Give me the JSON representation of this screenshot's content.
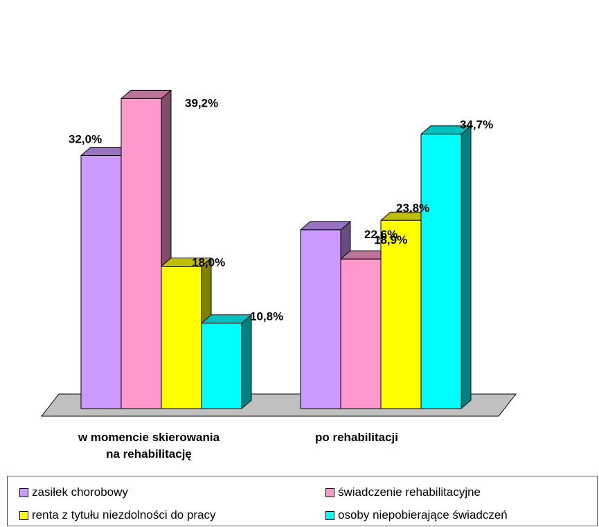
{
  "chart_data": {
    "type": "bar",
    "categories": [
      "w momencie skierowania na rehabilitację",
      "po rehabilitacji"
    ],
    "category_lines": [
      [
        "w momencie skierowania",
        "na rehabilitację"
      ],
      [
        "po rehabilitacji"
      ]
    ],
    "series": [
      {
        "name": "zasiłek chorobowy",
        "values": [
          32.0,
          22.6
        ],
        "labels": [
          "32,0%",
          "22,6%"
        ],
        "color": "#cc99ff"
      },
      {
        "name": "świadczenie rehabilitacyjne",
        "values": [
          39.2,
          18.9
        ],
        "labels": [
          "39,2%",
          "18,9%"
        ],
        "color": "#ff99cc"
      },
      {
        "name": "renta z tytułu niezdolności do pracy",
        "values": [
          18.0,
          23.8
        ],
        "labels": [
          "18,0%",
          "23,8%"
        ],
        "color": "#ffff00"
      },
      {
        "name": "osoby niepobierające świadczeń",
        "values": [
          10.8,
          34.7
        ],
        "labels": [
          "10,8%",
          "34,7%"
        ],
        "color": "#00ffff"
      }
    ],
    "ylim": [
      0,
      40
    ],
    "grid": false,
    "legend": "bottom",
    "three_d": true
  }
}
